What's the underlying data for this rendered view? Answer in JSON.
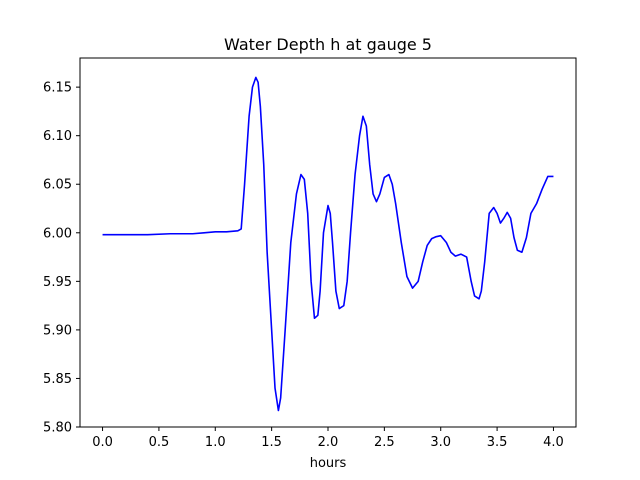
{
  "chart_data": {
    "type": "line",
    "title": "Water Depth h at gauge 5",
    "xlabel": "hours",
    "ylabel": "",
    "xlim": [
      -0.2,
      4.2
    ],
    "ylim": [
      5.8,
      6.18
    ],
    "xticks": [
      0.0,
      0.5,
      1.0,
      1.5,
      2.0,
      2.5,
      3.0,
      3.5,
      4.0
    ],
    "xtick_labels": [
      "0.0",
      "0.5",
      "1.0",
      "1.5",
      "2.0",
      "2.5",
      "3.0",
      "3.5",
      "4.0"
    ],
    "yticks": [
      5.8,
      5.85,
      5.9,
      5.95,
      6.0,
      6.05,
      6.1,
      6.15
    ],
    "ytick_labels": [
      "5.80",
      "5.85",
      "5.90",
      "5.95",
      "6.00",
      "6.05",
      "6.10",
      "6.15"
    ],
    "grid": false,
    "color": "#0000ff",
    "series": [
      {
        "x": [
          0.0,
          0.2,
          0.4,
          0.6,
          0.8,
          0.9,
          1.0,
          1.1,
          1.2,
          1.23,
          1.26,
          1.3,
          1.33,
          1.36,
          1.38,
          1.4,
          1.43,
          1.46,
          1.5,
          1.53,
          1.56,
          1.58,
          1.62,
          1.67,
          1.72,
          1.76,
          1.79,
          1.82,
          1.85,
          1.88,
          1.91,
          1.93,
          1.96,
          2.0,
          2.02,
          2.04,
          2.07,
          2.1,
          2.14,
          2.17,
          2.2,
          2.24,
          2.28,
          2.31,
          2.34,
          2.37,
          2.4,
          2.43,
          2.46,
          2.5,
          2.54,
          2.57,
          2.6,
          2.65,
          2.7,
          2.75,
          2.8,
          2.84,
          2.88,
          2.92,
          2.96,
          3.0,
          3.05,
          3.09,
          3.13,
          3.18,
          3.23,
          3.27,
          3.3,
          3.34,
          3.36,
          3.39,
          3.43,
          3.47,
          3.5,
          3.53,
          3.56,
          3.59,
          3.62,
          3.65,
          3.68,
          3.72,
          3.76,
          3.8,
          3.85,
          3.9,
          3.95,
          4.0
        ],
        "y": [
          5.998,
          5.998,
          5.998,
          5.999,
          5.999,
          6.0,
          6.001,
          6.001,
          6.002,
          6.004,
          6.05,
          6.12,
          6.15,
          6.16,
          6.155,
          6.13,
          6.07,
          5.98,
          5.9,
          5.84,
          5.817,
          5.83,
          5.9,
          5.99,
          6.04,
          6.06,
          6.055,
          6.02,
          5.95,
          5.912,
          5.915,
          5.94,
          6.0,
          6.028,
          6.02,
          5.99,
          5.94,
          5.922,
          5.925,
          5.95,
          6.0,
          6.06,
          6.1,
          6.12,
          6.11,
          6.07,
          6.04,
          6.032,
          6.04,
          6.057,
          6.06,
          6.05,
          6.03,
          5.99,
          5.955,
          5.943,
          5.95,
          5.97,
          5.987,
          5.994,
          5.996,
          5.997,
          5.99,
          5.98,
          5.976,
          5.978,
          5.975,
          5.95,
          5.935,
          5.932,
          5.94,
          5.97,
          6.02,
          6.026,
          6.02,
          6.01,
          6.015,
          6.021,
          6.015,
          5.995,
          5.982,
          5.98,
          5.995,
          6.02,
          6.03,
          6.045,
          6.058,
          6.058
        ]
      }
    ]
  }
}
